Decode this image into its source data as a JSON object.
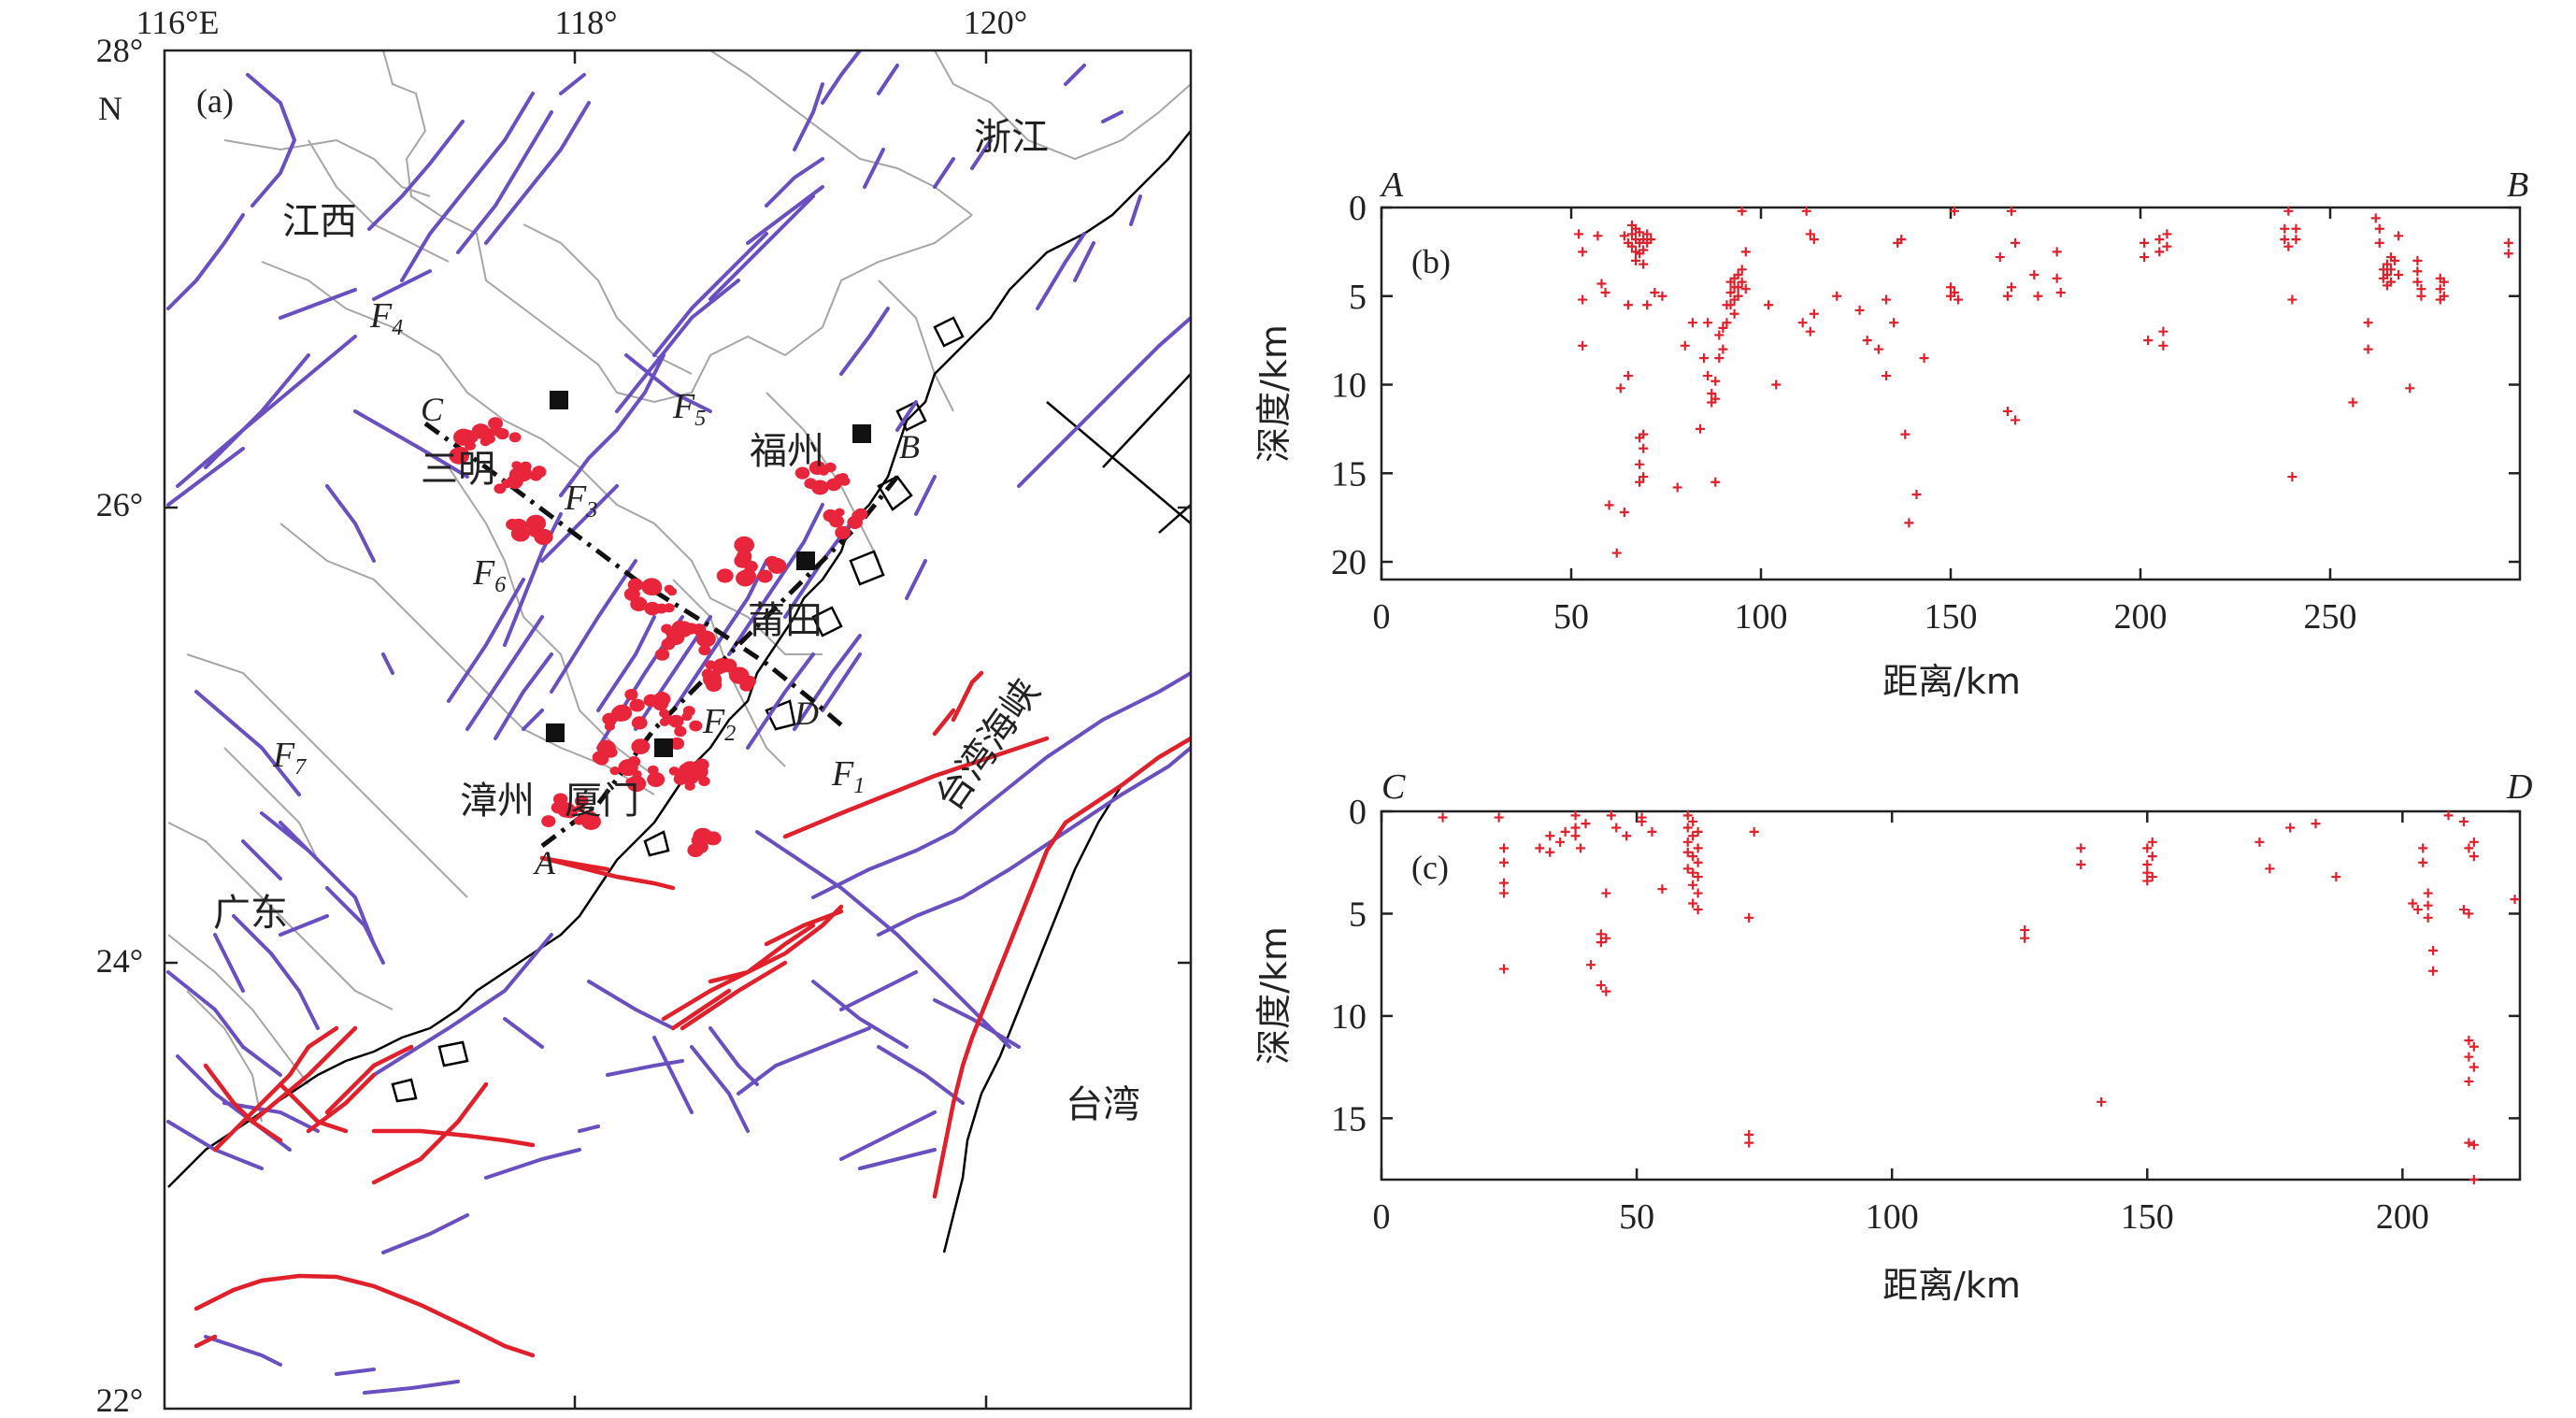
{
  "colors": {
    "fault_blue": "#6a4fc0",
    "fault_red": "#e0202a",
    "boundary": "#a6a6a6",
    "coast": "#000000",
    "quake": "#e8253a",
    "hypocenter": "#e0202a",
    "axis": "#222222"
  },
  "map": {
    "panel_label": "(a)",
    "lon_ticks": [
      "116°E",
      "118°",
      "120°"
    ],
    "lat_ticks": [
      "28°",
      "26°",
      "24°",
      "22°"
    ],
    "north_label": "N",
    "provinces": [
      "江西",
      "浙江",
      "广东",
      "台湾",
      "台湾海峡"
    ],
    "cities": [
      "三明",
      "福州",
      "莆田",
      "漳州",
      "厦门"
    ],
    "profile_endpoints": [
      "A",
      "B",
      "C",
      "D"
    ],
    "fault_labels": [
      {
        "name": "F",
        "sub": "1"
      },
      {
        "name": "F",
        "sub": "2"
      },
      {
        "name": "F",
        "sub": "3"
      },
      {
        "name": "F",
        "sub": "4"
      },
      {
        "name": "F",
        "sub": "5"
      },
      {
        "name": "F",
        "sub": "6"
      },
      {
        "name": "F",
        "sub": "7"
      }
    ],
    "station_markers": 5,
    "marker_icon": "filled-square-icon"
  },
  "chart_data": [
    {
      "panel": "(b)",
      "type": "scatter",
      "start_label": "A",
      "end_label": "B",
      "xlabel": "距离/km",
      "ylabel": "深度/km",
      "xlim": [
        0,
        300
      ],
      "ylim": [
        21,
        0
      ],
      "xticks": [
        "0",
        "50",
        "100",
        "150",
        "200",
        "250"
      ],
      "yticks": [
        "0",
        "5",
        "10",
        "15",
        "20"
      ],
      "points": [
        [
          52,
          1.5
        ],
        [
          53,
          2.5
        ],
        [
          53,
          5.2
        ],
        [
          53,
          7.8
        ],
        [
          57,
          1.6
        ],
        [
          58,
          4.3
        ],
        [
          59,
          4.8
        ],
        [
          60,
          16.8
        ],
        [
          62,
          19.5
        ],
        [
          63,
          10.2
        ],
        [
          64,
          1.6
        ],
        [
          64,
          17.2
        ],
        [
          65,
          2.0
        ],
        [
          65,
          5.5
        ],
        [
          65,
          9.5
        ],
        [
          66,
          1.0
        ],
        [
          66,
          1.5
        ],
        [
          66,
          2.2
        ],
        [
          67,
          1.2
        ],
        [
          67,
          1.8
        ],
        [
          67,
          2.5
        ],
        [
          67,
          3.0
        ],
        [
          68,
          1.4
        ],
        [
          68,
          2.0
        ],
        [
          68,
          2.6
        ],
        [
          68,
          13.0
        ],
        [
          68,
          14.5
        ],
        [
          68,
          15.5
        ],
        [
          69,
          1.8
        ],
        [
          69,
          2.4
        ],
        [
          69,
          3.2
        ],
        [
          69,
          12.8
        ],
        [
          69,
          13.6
        ],
        [
          69,
          15.2
        ],
        [
          70,
          1.5
        ],
        [
          70,
          2.0
        ],
        [
          70,
          5.5
        ],
        [
          71,
          1.8
        ],
        [
          72,
          4.8
        ],
        [
          74,
          5.0
        ],
        [
          78,
          15.8
        ],
        [
          80,
          7.8
        ],
        [
          82,
          6.5
        ],
        [
          84,
          12.5
        ],
        [
          85,
          8.5
        ],
        [
          86,
          6.5
        ],
        [
          86,
          9.5
        ],
        [
          87,
          10.5
        ],
        [
          87,
          11.0
        ],
        [
          88,
          9.8
        ],
        [
          88,
          10.8
        ],
        [
          88,
          15.5
        ],
        [
          89,
          7.2
        ],
        [
          89,
          8.5
        ],
        [
          90,
          6.8
        ],
        [
          90,
          8.0
        ],
        [
          91,
          5.5
        ],
        [
          91,
          6.5
        ],
        [
          92,
          4.2
        ],
        [
          92,
          4.8
        ],
        [
          92,
          5.5
        ],
        [
          93,
          4.0
        ],
        [
          93,
          4.5
        ],
        [
          93,
          5.2
        ],
        [
          93,
          6.0
        ],
        [
          94,
          3.8
        ],
        [
          94,
          4.5
        ],
        [
          94,
          5.0
        ],
        [
          95,
          0.2
        ],
        [
          95,
          3.5
        ],
        [
          95,
          4.2
        ],
        [
          96,
          2.5
        ],
        [
          96,
          4.6
        ],
        [
          102,
          5.5
        ],
        [
          104,
          10.0
        ],
        [
          111,
          6.5
        ],
        [
          112,
          0.2
        ],
        [
          113,
          1.5
        ],
        [
          113,
          7.0
        ],
        [
          114,
          1.8
        ],
        [
          114,
          6.0
        ],
        [
          120,
          5.0
        ],
        [
          126,
          5.8
        ],
        [
          128,
          7.5
        ],
        [
          131,
          8.0
        ],
        [
          133,
          5.2
        ],
        [
          133,
          9.5
        ],
        [
          135,
          6.5
        ],
        [
          136,
          2.0
        ],
        [
          137,
          1.8
        ],
        [
          138,
          12.8
        ],
        [
          139,
          17.8
        ],
        [
          141,
          16.2
        ],
        [
          143,
          8.5
        ],
        [
          150,
          4.5
        ],
        [
          150,
          5.0
        ],
        [
          151,
          0.2
        ],
        [
          151,
          4.8
        ],
        [
          152,
          5.2
        ],
        [
          163,
          2.8
        ],
        [
          165,
          5.0
        ],
        [
          165,
          11.5
        ],
        [
          166,
          0.2
        ],
        [
          166,
          4.5
        ],
        [
          167,
          12.0
        ],
        [
          167,
          2.0
        ],
        [
          172,
          3.8
        ],
        [
          173,
          5.0
        ],
        [
          178,
          4.0
        ],
        [
          178,
          2.5
        ],
        [
          179,
          4.8
        ],
        [
          201,
          2.0
        ],
        [
          201,
          2.8
        ],
        [
          202,
          7.5
        ],
        [
          205,
          2.5
        ],
        [
          205,
          1.8
        ],
        [
          206,
          7.0
        ],
        [
          206,
          7.8
        ],
        [
          207,
          1.5
        ],
        [
          207,
          2.2
        ],
        [
          238,
          1.2
        ],
        [
          238,
          1.8
        ],
        [
          239,
          2.2
        ],
        [
          239,
          0.2
        ],
        [
          240,
          15.2
        ],
        [
          240,
          5.2
        ],
        [
          241,
          1.2
        ],
        [
          241,
          1.8
        ],
        [
          256,
          11.0
        ],
        [
          260,
          6.5
        ],
        [
          260,
          8.0
        ],
        [
          262,
          0.6
        ],
        [
          263,
          1.2
        ],
        [
          263,
          2.0
        ],
        [
          264,
          3.5
        ],
        [
          264,
          4.0
        ],
        [
          265,
          3.2
        ],
        [
          265,
          3.8
        ],
        [
          265,
          4.4
        ],
        [
          266,
          2.8
        ],
        [
          266,
          3.5
        ],
        [
          266,
          4.2
        ],
        [
          267,
          3.0
        ],
        [
          268,
          3.8
        ],
        [
          268,
          1.6
        ],
        [
          271,
          10.2
        ],
        [
          273,
          3.0
        ],
        [
          273,
          3.6
        ],
        [
          273,
          4.2
        ],
        [
          274,
          4.6
        ],
        [
          274,
          5.0
        ],
        [
          279,
          4.0
        ],
        [
          279,
          4.6
        ],
        [
          279,
          5.2
        ],
        [
          280,
          4.2
        ],
        [
          280,
          5.0
        ],
        [
          297,
          2.0
        ],
        [
          297,
          2.6
        ]
      ]
    },
    {
      "panel": "(c)",
      "type": "scatter",
      "start_label": "C",
      "end_label": "D",
      "xlabel": "距离/km",
      "ylabel": "深度/km",
      "xlim": [
        0,
        223
      ],
      "ylim": [
        18,
        0
      ],
      "xticks": [
        "0",
        "50",
        "100",
        "150",
        "200"
      ],
      "yticks": [
        "0",
        "5",
        "10",
        "15"
      ],
      "points": [
        [
          12,
          0.3
        ],
        [
          23,
          0.3
        ],
        [
          24,
          1.8
        ],
        [
          24,
          2.5
        ],
        [
          24,
          3.5
        ],
        [
          24,
          4.0
        ],
        [
          24,
          7.7
        ],
        [
          31,
          1.8
        ],
        [
          33,
          2.0
        ],
        [
          33,
          1.2
        ],
        [
          35,
          1.5
        ],
        [
          36,
          1.0
        ],
        [
          38,
          0.2
        ],
        [
          38,
          0.8
        ],
        [
          38,
          1.2
        ],
        [
          39,
          1.8
        ],
        [
          40,
          0.6
        ],
        [
          41,
          7.5
        ],
        [
          43,
          6.0
        ],
        [
          43,
          6.4
        ],
        [
          43,
          8.5
        ],
        [
          44,
          4.0
        ],
        [
          44,
          6.2
        ],
        [
          44,
          8.8
        ],
        [
          45,
          0.2
        ],
        [
          46,
          0.8
        ],
        [
          48,
          1.2
        ],
        [
          51,
          0.3
        ],
        [
          51,
          0.5
        ],
        [
          53,
          1.0
        ],
        [
          55,
          3.8
        ],
        [
          60,
          0.2
        ],
        [
          60,
          0.8
        ],
        [
          60,
          1.5
        ],
        [
          60,
          2.0
        ],
        [
          60,
          2.8
        ],
        [
          61,
          0.5
        ],
        [
          61,
          1.2
        ],
        [
          61,
          2.2
        ],
        [
          61,
          3.0
        ],
        [
          61,
          3.6
        ],
        [
          61,
          4.5
        ],
        [
          62,
          1.0
        ],
        [
          62,
          1.8
        ],
        [
          62,
          2.5
        ],
        [
          62,
          3.2
        ],
        [
          62,
          4.0
        ],
        [
          62,
          4.8
        ],
        [
          72,
          5.2
        ],
        [
          72,
          15.8
        ],
        [
          72,
          16.2
        ],
        [
          73,
          1.0
        ],
        [
          126,
          5.8
        ],
        [
          126,
          6.2
        ],
        [
          137,
          1.8
        ],
        [
          137,
          2.6
        ],
        [
          141,
          14.2
        ],
        [
          150,
          1.8
        ],
        [
          150,
          2.6
        ],
        [
          150,
          3.0
        ],
        [
          150,
          3.4
        ],
        [
          151,
          1.5
        ],
        [
          151,
          2.2
        ],
        [
          151,
          3.2
        ],
        [
          172,
          1.5
        ],
        [
          174,
          2.8
        ],
        [
          178,
          0.8
        ],
        [
          183,
          0.6
        ],
        [
          187,
          3.2
        ],
        [
          202,
          4.5
        ],
        [
          203,
          4.8
        ],
        [
          204,
          1.8
        ],
        [
          204,
          2.5
        ],
        [
          205,
          4.0
        ],
        [
          205,
          4.6
        ],
        [
          205,
          5.2
        ],
        [
          206,
          6.8
        ],
        [
          206,
          7.8
        ],
        [
          209,
          0.2
        ],
        [
          212,
          0.5
        ],
        [
          212,
          4.8
        ],
        [
          213,
          1.8
        ],
        [
          213,
          5.0
        ],
        [
          213,
          11.2
        ],
        [
          213,
          12.0
        ],
        [
          213,
          13.2
        ],
        [
          213,
          16.2
        ],
        [
          214,
          1.5
        ],
        [
          214,
          2.2
        ],
        [
          214,
          11.5
        ],
        [
          214,
          12.5
        ],
        [
          214,
          16.3
        ],
        [
          214,
          18.0
        ],
        [
          222,
          4.3
        ]
      ]
    }
  ]
}
